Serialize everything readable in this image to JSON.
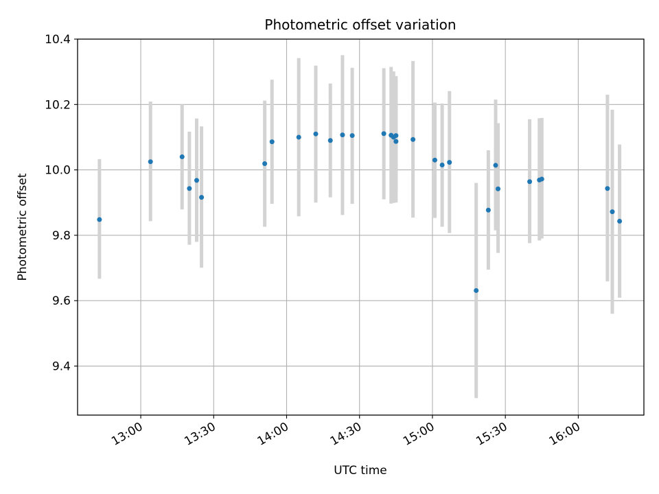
{
  "chart_data": {
    "type": "scatter",
    "title": "Photometric offset variation",
    "xlabel": "UTC time",
    "ylabel": "Photometric offset",
    "x_ticks": [
      "13:00",
      "13:30",
      "14:00",
      "14:30",
      "15:00",
      "15:30",
      "16:00"
    ],
    "y_ticks": [
      "9.4",
      "9.6",
      "9.8",
      "10.0",
      "10.2",
      "10.4"
    ],
    "xlim": [
      "12:34",
      "16:27"
    ],
    "ylim": [
      9.25,
      10.4
    ],
    "grid": true,
    "errorbar_color": "#d3d3d3",
    "marker_color": "#1f77b4",
    "points": [
      {
        "x": "12:43",
        "y": 9.848,
        "lo": 9.667,
        "hi": 10.033
      },
      {
        "x": "13:04",
        "y": 10.025,
        "lo": 9.843,
        "hi": 10.209
      },
      {
        "x": "13:17",
        "y": 10.04,
        "lo": 9.879,
        "hi": 10.2
      },
      {
        "x": "13:20",
        "y": 9.943,
        "lo": 9.771,
        "hi": 10.117
      },
      {
        "x": "13:23",
        "y": 9.968,
        "lo": 9.78,
        "hi": 10.157
      },
      {
        "x": "13:25",
        "y": 9.916,
        "lo": 9.701,
        "hi": 10.133
      },
      {
        "x": "13:51",
        "y": 10.019,
        "lo": 9.826,
        "hi": 10.212
      },
      {
        "x": "13:54",
        "y": 10.086,
        "lo": 9.896,
        "hi": 10.276
      },
      {
        "x": "14:05",
        "y": 10.1,
        "lo": 9.858,
        "hi": 10.342
      },
      {
        "x": "14:12",
        "y": 10.11,
        "lo": 9.9,
        "hi": 10.319
      },
      {
        "x": "14:18",
        "y": 10.09,
        "lo": 9.916,
        "hi": 10.264
      },
      {
        "x": "14:23",
        "y": 10.107,
        "lo": 9.862,
        "hi": 10.351
      },
      {
        "x": "14:27",
        "y": 10.105,
        "lo": 9.896,
        "hi": 10.312
      },
      {
        "x": "14:40",
        "y": 10.111,
        "lo": 9.91,
        "hi": 10.311
      },
      {
        "x": "14:43",
        "y": 10.106,
        "lo": 9.897,
        "hi": 10.315
      },
      {
        "x": "14:44",
        "y": 10.1,
        "lo": 9.899,
        "hi": 10.301
      },
      {
        "x": "14:45",
        "y": 10.087,
        "lo": 9.9,
        "hi": 10.287
      },
      {
        "x": "14:45",
        "y": 10.105,
        "lo": 9.936,
        "hi": 10.274
      },
      {
        "x": "14:52",
        "y": 10.093,
        "lo": 9.854,
        "hi": 10.333
      },
      {
        "x": "15:01",
        "y": 10.03,
        "lo": 9.853,
        "hi": 10.206
      },
      {
        "x": "15:04",
        "y": 10.015,
        "lo": 9.826,
        "hi": 10.203
      },
      {
        "x": "15:07",
        "y": 10.023,
        "lo": 9.807,
        "hi": 10.241
      },
      {
        "x": "15:18",
        "y": 9.631,
        "lo": 9.302,
        "hi": 9.96
      },
      {
        "x": "15:23",
        "y": 9.877,
        "lo": 9.695,
        "hi": 10.06
      },
      {
        "x": "15:26",
        "y": 10.014,
        "lo": 9.815,
        "hi": 10.215
      },
      {
        "x": "15:27",
        "y": 9.942,
        "lo": 9.746,
        "hi": 10.143
      },
      {
        "x": "15:40",
        "y": 9.964,
        "lo": 9.776,
        "hi": 10.155
      },
      {
        "x": "15:44",
        "y": 9.969,
        "lo": 9.784,
        "hi": 10.158
      },
      {
        "x": "15:45",
        "y": 9.972,
        "lo": 9.79,
        "hi": 10.159
      },
      {
        "x": "16:12",
        "y": 9.943,
        "lo": 9.659,
        "hi": 10.23
      },
      {
        "x": "16:14",
        "y": 9.872,
        "lo": 9.56,
        "hi": 10.184
      },
      {
        "x": "16:17",
        "y": 9.843,
        "lo": 9.609,
        "hi": 10.078
      }
    ]
  }
}
